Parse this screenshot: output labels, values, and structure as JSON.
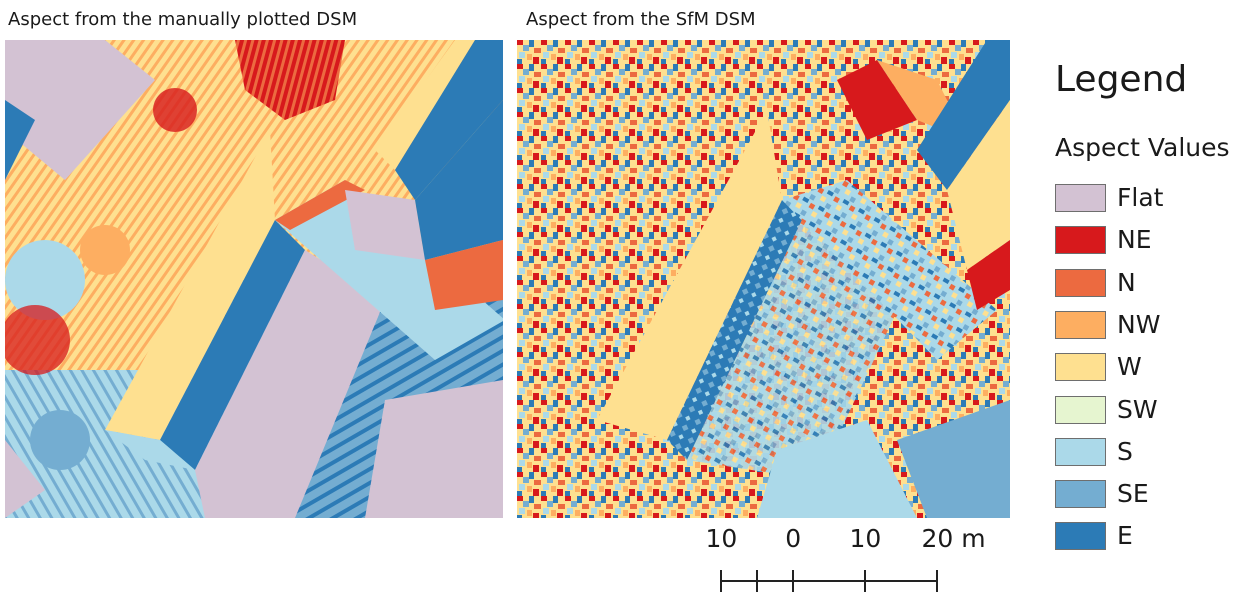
{
  "panels": {
    "left_title": "Aspect from the manually plotted DSM",
    "right_title": "Aspect from the SfM DSM"
  },
  "legend": {
    "title": "Legend",
    "subtitle": "Aspect Values",
    "items": [
      {
        "label": "Flat",
        "color": "#d3c2d3"
      },
      {
        "label": "NE",
        "color": "#d7191c"
      },
      {
        "label": "N",
        "color": "#ec6a40"
      },
      {
        "label": "NW",
        "color": "#fdae61"
      },
      {
        "label": "W",
        "color": "#fee090"
      },
      {
        "label": "SW",
        "color": "#e6f5d0"
      },
      {
        "label": "S",
        "color": "#abd9e9"
      },
      {
        "label": "SE",
        "color": "#74add1"
      },
      {
        "label": "E",
        "color": "#2c7bb6"
      }
    ]
  },
  "scale_bar": {
    "labels": [
      "10",
      "0",
      "10",
      "20 m"
    ],
    "values": [
      -10,
      0,
      10,
      20
    ]
  }
}
